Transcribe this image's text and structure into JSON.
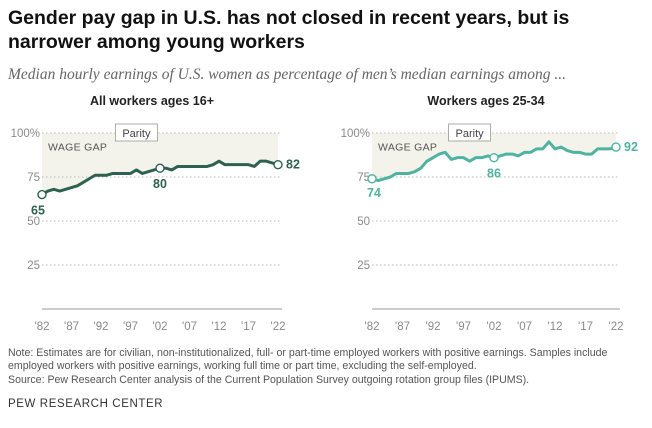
{
  "title": "Gender pay gap in U.S. has not closed in recent years, but is narrower among young workers",
  "subtitle": "Median hourly earnings of U.S. women as percentage of men’s median earnings among ...",
  "note": "Note: Estimates are for civilian, non-institutionalized, full- or part-time employed workers with positive earnings. Samples include employed workers with positive earnings, working full time or part time, excluding the self-employed.",
  "source": "Source: Pew Research Center analysis of the Current Population Survey outgoing rotation group files (IPUMS).",
  "footer": "PEW RESEARCH CENTER",
  "colors": {
    "all": "#2f6150",
    "young": "#4fb3a0",
    "gap_fill": "#f3f3ec",
    "grid": "#bbbbbb"
  },
  "chart_data": [
    {
      "type": "line",
      "title": "All workers ages 16+",
      "ylim": [
        0,
        100
      ],
      "yticks": [
        "100%",
        "75",
        "50",
        "25"
      ],
      "ytick_values": [
        100,
        75,
        50,
        25
      ],
      "xticks": [
        "'82",
        "'87",
        "'92",
        "'97",
        "'02",
        "'07",
        "'12",
        "'17",
        "'22"
      ],
      "xtick_values": [
        1982,
        1987,
        1992,
        1997,
        2002,
        2007,
        2012,
        2017,
        2022
      ],
      "xlim": [
        1982,
        2022
      ],
      "parity_label": "Parity",
      "gap_label": "WAGE GAP",
      "x": [
        1982,
        1983,
        1984,
        1985,
        1986,
        1987,
        1988,
        1989,
        1990,
        1991,
        1992,
        1993,
        1994,
        1995,
        1996,
        1997,
        1998,
        1999,
        2000,
        2001,
        2002,
        2003,
        2004,
        2005,
        2006,
        2007,
        2008,
        2009,
        2010,
        2011,
        2012,
        2013,
        2014,
        2015,
        2016,
        2017,
        2018,
        2019,
        2020,
        2021,
        2022
      ],
      "values": [
        65,
        67,
        68,
        67,
        68,
        69,
        70,
        72,
        74,
        76,
        76,
        76,
        77,
        77,
        77,
        77,
        79,
        77,
        78,
        79,
        80,
        80,
        79,
        81,
        81,
        81,
        81,
        81,
        81,
        82,
        84,
        82,
        82,
        82,
        82,
        82,
        81,
        84,
        84,
        83,
        82
      ],
      "data_labels": [
        {
          "text": "65",
          "year": 1982,
          "value": 65
        },
        {
          "text": "80",
          "year": 2002,
          "value": 80
        },
        {
          "text": "82",
          "year": 2022,
          "value": 82
        }
      ]
    },
    {
      "type": "line",
      "title": "Workers ages 25-34",
      "ylim": [
        0,
        100
      ],
      "yticks": [
        "100%",
        "75",
        "50",
        "25"
      ],
      "ytick_values": [
        100,
        75,
        50,
        25
      ],
      "xticks": [
        "'82",
        "'87",
        "'92",
        "'97",
        "'02",
        "'07",
        "'12",
        "'17",
        "'22"
      ],
      "xtick_values": [
        1982,
        1987,
        1992,
        1997,
        2002,
        2007,
        2012,
        2017,
        2022
      ],
      "xlim": [
        1982,
        2022
      ],
      "parity_label": "Parity",
      "gap_label": "WAGE GAP",
      "x": [
        1982,
        1983,
        1984,
        1985,
        1986,
        1987,
        1988,
        1989,
        1990,
        1991,
        1992,
        1993,
        1994,
        1995,
        1996,
        1997,
        1998,
        1999,
        2000,
        2001,
        2002,
        2003,
        2004,
        2005,
        2006,
        2007,
        2008,
        2009,
        2010,
        2011,
        2012,
        2013,
        2014,
        2015,
        2016,
        2017,
        2018,
        2019,
        2020,
        2021,
        2022
      ],
      "values": [
        74,
        73,
        74,
        75,
        77,
        77,
        77,
        78,
        80,
        84,
        86,
        88,
        89,
        85,
        86,
        86,
        84,
        86,
        86,
        87,
        86,
        87,
        88,
        88,
        87,
        89,
        89,
        91,
        91,
        95,
        91,
        92,
        90,
        89,
        89,
        88,
        88,
        91,
        91,
        91,
        92
      ],
      "data_labels": [
        {
          "text": "74",
          "year": 1982,
          "value": 74
        },
        {
          "text": "86",
          "year": 2002,
          "value": 86
        },
        {
          "text": "92",
          "year": 2022,
          "value": 92
        }
      ]
    }
  ]
}
